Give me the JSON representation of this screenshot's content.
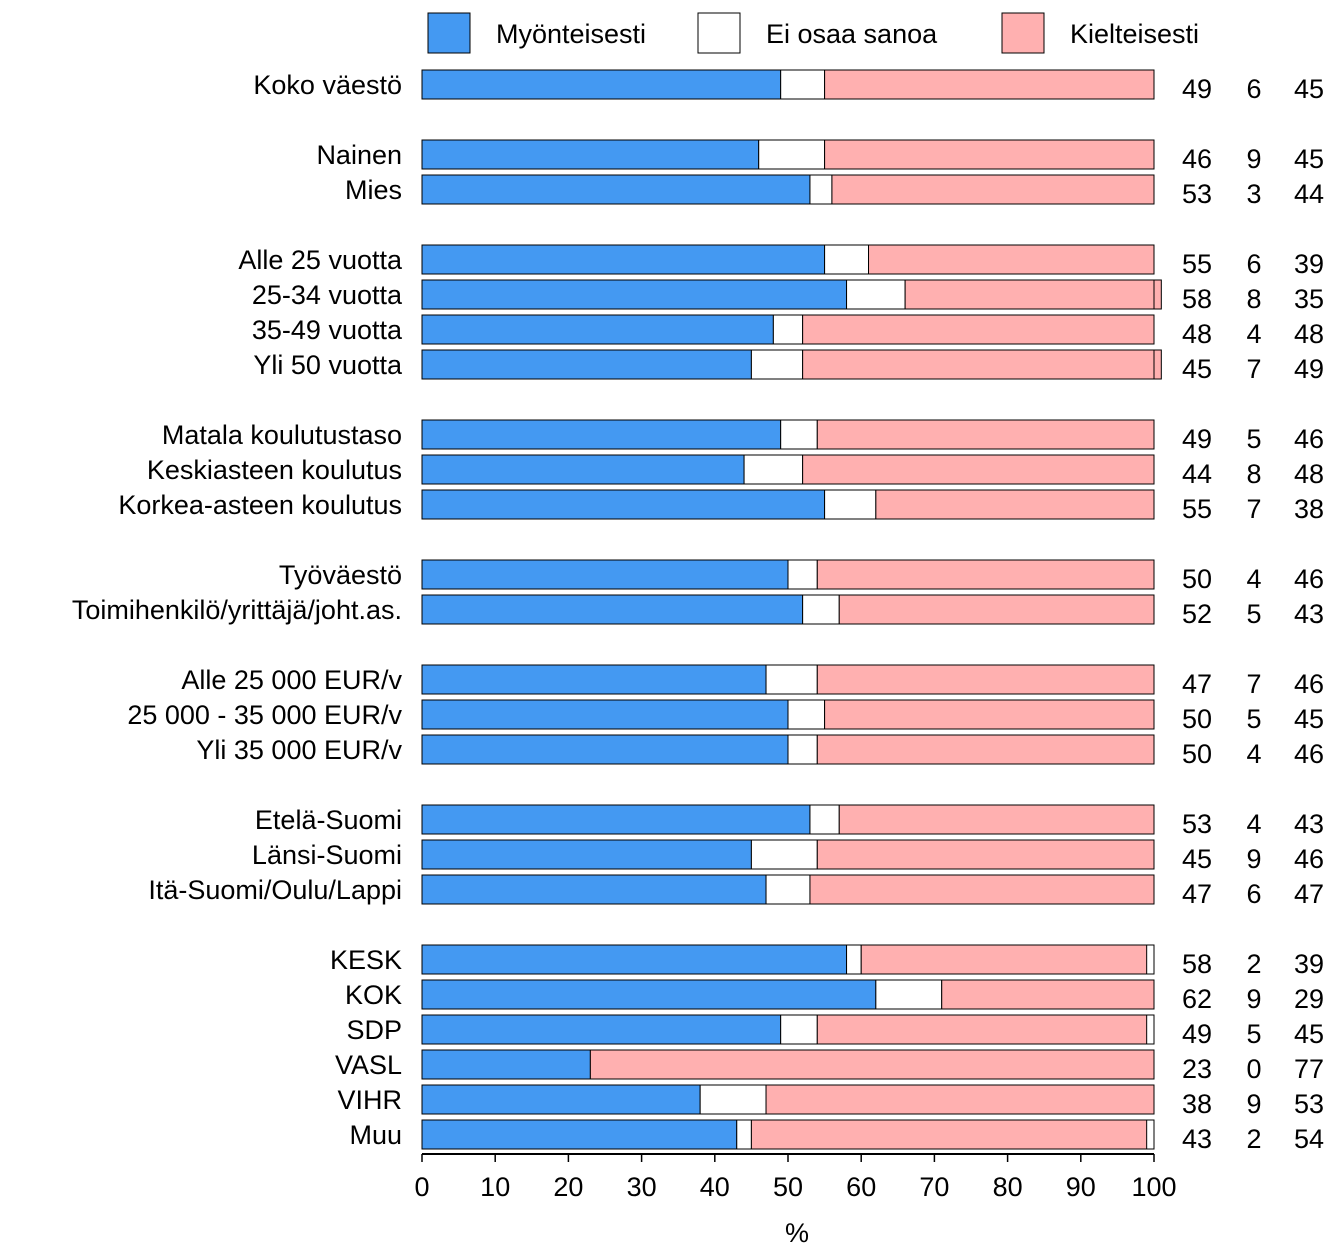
{
  "chart_data": {
    "type": "bar",
    "orientation": "horizontal",
    "stacked": true,
    "legend_position": "top",
    "grid": false,
    "xlabel": "%",
    "xlim": [
      0,
      100
    ],
    "xticks": [
      0,
      10,
      20,
      30,
      40,
      50,
      60,
      70,
      80,
      90,
      100
    ],
    "colors": {
      "positive": "#4499f2",
      "unsure": "#ffffff",
      "negative": "#ffb0b0",
      "outline": "#000000"
    },
    "series": [
      {
        "key": "positive",
        "name": "Myönteisesti"
      },
      {
        "key": "unsure",
        "name": "Ei osaa sanoa"
      },
      {
        "key": "negative",
        "name": "Kielteisesti"
      }
    ],
    "groups": [
      {
        "rows": [
          {
            "label": "Koko väestö",
            "positive": 49,
            "unsure": 6,
            "negative": 45
          }
        ]
      },
      {
        "rows": [
          {
            "label": "Nainen",
            "positive": 46,
            "unsure": 9,
            "negative": 45
          },
          {
            "label": "Mies",
            "positive": 53,
            "unsure": 3,
            "negative": 44
          }
        ]
      },
      {
        "rows": [
          {
            "label": "Alle 25 vuotta",
            "positive": 55,
            "unsure": 6,
            "negative": 39
          },
          {
            "label": "25-34 vuotta",
            "positive": 58,
            "unsure": 8,
            "negative": 35
          },
          {
            "label": "35-49 vuotta",
            "positive": 48,
            "unsure": 4,
            "negative": 48
          },
          {
            "label": "Yli 50 vuotta",
            "positive": 45,
            "unsure": 7,
            "negative": 49
          }
        ]
      },
      {
        "rows": [
          {
            "label": "Matala koulutustaso",
            "positive": 49,
            "unsure": 5,
            "negative": 46
          },
          {
            "label": "Keskiasteen koulutus",
            "positive": 44,
            "unsure": 8,
            "negative": 48
          },
          {
            "label": "Korkea-asteen koulutus",
            "positive": 55,
            "unsure": 7,
            "negative": 38
          }
        ]
      },
      {
        "rows": [
          {
            "label": "Työväestö",
            "positive": 50,
            "unsure": 4,
            "negative": 46
          },
          {
            "label": "Toimihenkilö/yrittäjä/joht.as.",
            "positive": 52,
            "unsure": 5,
            "negative": 43
          }
        ]
      },
      {
        "rows": [
          {
            "label": "Alle 25 000 EUR/v",
            "positive": 47,
            "unsure": 7,
            "negative": 46
          },
          {
            "label": "25 000 - 35 000 EUR/v",
            "positive": 50,
            "unsure": 5,
            "negative": 45
          },
          {
            "label": "Yli 35 000 EUR/v",
            "positive": 50,
            "unsure": 4,
            "negative": 46
          }
        ]
      },
      {
        "rows": [
          {
            "label": "Etelä-Suomi",
            "positive": 53,
            "unsure": 4,
            "negative": 43
          },
          {
            "label": "Länsi-Suomi",
            "positive": 45,
            "unsure": 9,
            "negative": 46
          },
          {
            "label": "Itä-Suomi/Oulu/Lappi",
            "positive": 47,
            "unsure": 6,
            "negative": 47
          }
        ]
      },
      {
        "rows": [
          {
            "label": "KESK",
            "positive": 58,
            "unsure": 2,
            "negative": 39
          },
          {
            "label": "KOK",
            "positive": 62,
            "unsure": 9,
            "negative": 29
          },
          {
            "label": "SDP",
            "positive": 49,
            "unsure": 5,
            "negative": 45
          },
          {
            "label": "VASL",
            "positive": 23,
            "unsure": 0,
            "negative": 77
          },
          {
            "label": "VIHR",
            "positive": 38,
            "unsure": 9,
            "negative": 53
          },
          {
            "label": "Muu",
            "positive": 43,
            "unsure": 2,
            "negative": 54
          }
        ]
      }
    ]
  }
}
